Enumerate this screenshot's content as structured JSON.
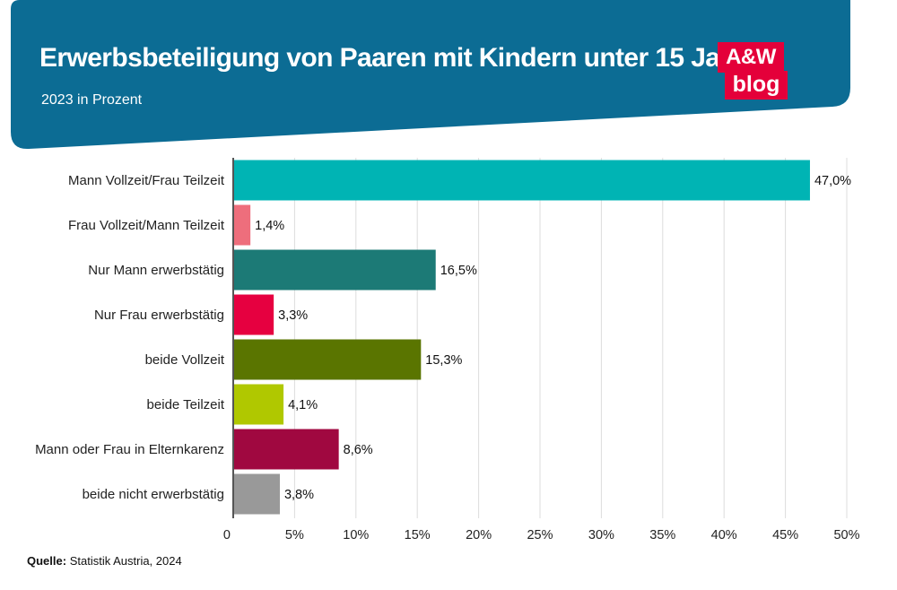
{
  "header": {
    "title": "Erwerbsbeteiligung von Paaren mit Kindern unter 15 Jahren",
    "subtitle": "2023 in Prozent",
    "logo_line1": "A&W",
    "logo_line2": "blog"
  },
  "colors": {
    "banner": "#0c6c94",
    "gridline": "#dddddd",
    "axis": "#555555"
  },
  "chart_data": {
    "type": "bar",
    "orientation": "horizontal",
    "title": "Erwerbsbeteiligung von Paaren mit Kindern unter 15 Jahren",
    "subtitle": "2023 in Prozent",
    "xlabel": "",
    "ylabel": "",
    "xlim": [
      0,
      50
    ],
    "grid": true,
    "ticks": [
      {
        "value": 0,
        "label": "0"
      },
      {
        "value": 5,
        "label": "5%"
      },
      {
        "value": 10,
        "label": "10%"
      },
      {
        "value": 15,
        "label": "15%"
      },
      {
        "value": 20,
        "label": "20%"
      },
      {
        "value": 25,
        "label": "25%"
      },
      {
        "value": 30,
        "label": "30%"
      },
      {
        "value": 35,
        "label": "35%"
      },
      {
        "value": 40,
        "label": "40%"
      },
      {
        "value": 45,
        "label": "45%"
      },
      {
        "value": 50,
        "label": "50%"
      }
    ],
    "bars": [
      {
        "category": "Mann Vollzeit/Frau Teilzeit",
        "value": 47.0,
        "label": "47,0%",
        "color": "#00b4b4"
      },
      {
        "category": "Frau Vollzeit/Mann Teilzeit",
        "value": 1.4,
        "label": "1,4%",
        "color": "#ee6e7c"
      },
      {
        "category": "Nur Mann erwerbstätig",
        "value": 16.5,
        "label": "16,5%",
        "color": "#1c7a76"
      },
      {
        "category": "Nur Frau erwerbstätig",
        "value": 3.3,
        "label": "3,3%",
        "color": "#e60040"
      },
      {
        "category": "beide Vollzeit",
        "value": 15.3,
        "label": "15,3%",
        "color": "#5a7500"
      },
      {
        "category": "beide Teilzeit",
        "value": 4.1,
        "label": "4,1%",
        "color": "#b0c800"
      },
      {
        "category": "Mann oder Frau in Elternkarenz",
        "value": 8.6,
        "label": "8,6%",
        "color": "#a00840"
      },
      {
        "category": "beide nicht erwerbstätig",
        "value": 3.8,
        "label": "3,8%",
        "color": "#999999"
      }
    ]
  },
  "footer": {
    "source_label": "Quelle:",
    "source_text": " Statistik Austria, 2024"
  }
}
